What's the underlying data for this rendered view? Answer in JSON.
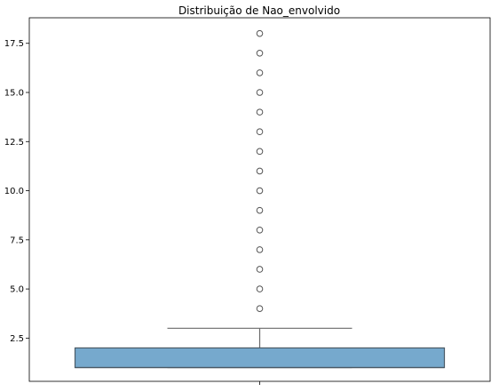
{
  "chart_data": {
    "type": "box",
    "title": "Distribuição de Nao_envolvido",
    "xlabel": "",
    "ylabel": "",
    "ylim": [
      0.3,
      18.8
    ],
    "yticks": [
      2.5,
      5.0,
      7.5,
      10.0,
      12.5,
      15.0,
      17.5
    ],
    "ytick_labels": [
      "2.5",
      "5.0",
      "7.5",
      "10.0",
      "12.5",
      "15.0",
      "17.5"
    ],
    "grid": false,
    "box": {
      "min": 1,
      "q1": 1,
      "median": 1,
      "q3": 2,
      "whisker_low": 1,
      "whisker_high": 3
    },
    "outliers": [
      4,
      5,
      6,
      7,
      8,
      9,
      10,
      11,
      12,
      13,
      14,
      15,
      16,
      17,
      18
    ],
    "colors": {
      "box_fill": "#76a9cd",
      "box_edge": "#4a5a66",
      "whisker": "#6a6a6a",
      "outlier_edge": "#555555",
      "axes": "#000000"
    }
  }
}
